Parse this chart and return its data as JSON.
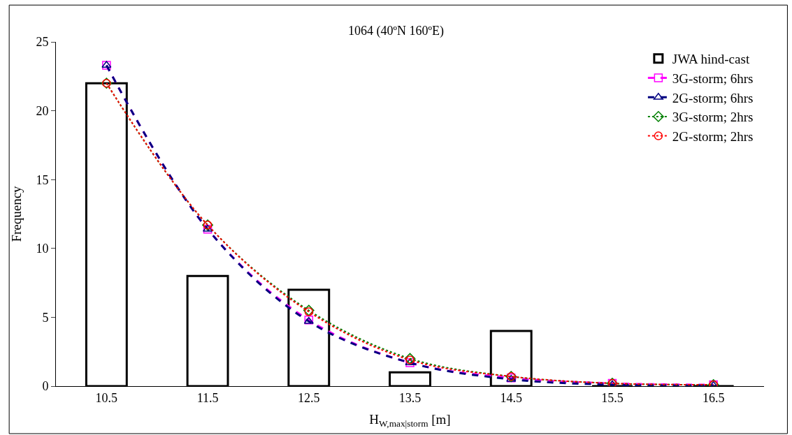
{
  "chart_data": {
    "type": "bar",
    "title": "1064 (40ºN 160ºE)",
    "xlabel": "H$_{W,max|storm}$ [m]",
    "ylabel": "Frequency",
    "categories": [
      "10.5",
      "11.5",
      "12.5",
      "13.5",
      "14.5",
      "15.5",
      "16.5"
    ],
    "series": [
      {
        "name": "JWA hind-cast",
        "color": "#000000",
        "values": [
          22,
          8,
          7,
          1,
          4,
          0,
          0
        ]
      },
      {
        "name": "3G-storm; 6hrs",
        "type": "line",
        "color": "#ff00ff",
        "marker": "square",
        "line_style": "dashed",
        "values": [
          23.3,
          11.4,
          4.8,
          1.7,
          0.6,
          0.2,
          0.1
        ]
      },
      {
        "name": "2G-storm; 6hrs",
        "type": "line",
        "color": "#000080",
        "marker": "triangle",
        "line_style": "dashed",
        "values": [
          23.3,
          11.4,
          4.7,
          1.7,
          0.5,
          0.1,
          0.05
        ]
      },
      {
        "name": "3G-storm; 2hrs",
        "type": "line",
        "color": "#008000",
        "marker": "diamond",
        "line_style": "dotted",
        "values": [
          22,
          11.7,
          5.5,
          2.0,
          0.7,
          0.2,
          0.1
        ]
      },
      {
        "name": "2G-storm; 2hrs",
        "type": "line",
        "color": "#ff0000",
        "marker": "circle",
        "line_style": "dotted",
        "values": [
          22,
          11.7,
          5.4,
          1.9,
          0.7,
          0.2,
          0.1
        ]
      }
    ],
    "ylim": [
      0,
      25
    ],
    "yticks": [
      0,
      5,
      10,
      15,
      20,
      25
    ],
    "grid": false,
    "legend": "top right"
  }
}
